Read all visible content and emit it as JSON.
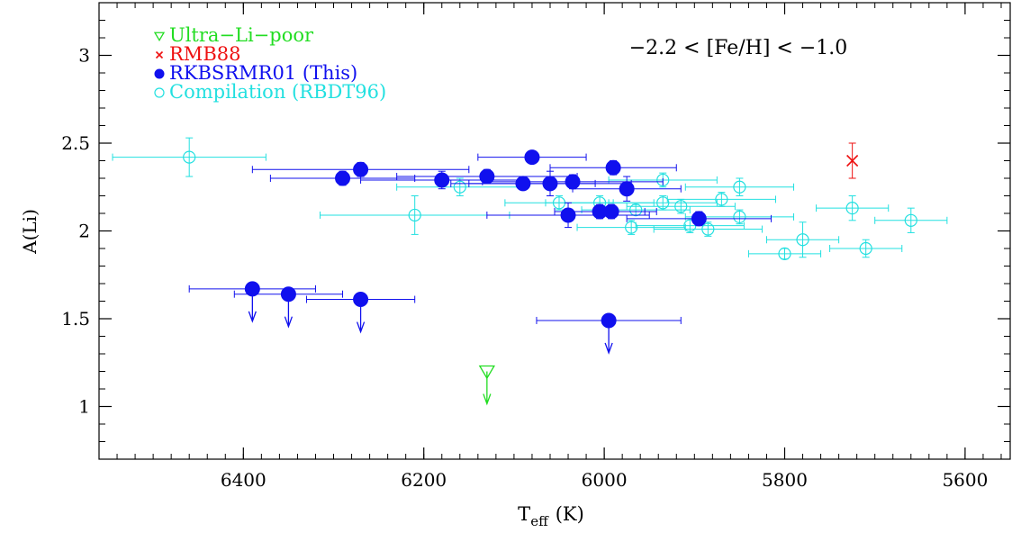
{
  "chart_data": {
    "type": "scatter",
    "title": "",
    "annotation": "−2.2 < [Fe/H] < −1.0",
    "xlabel_main": "T",
    "xlabel_sub": "eff",
    "xlabel_unit": "(K)",
    "ylabel": "A(Li)",
    "xlim": [
      6560,
      5550
    ],
    "ylim": [
      0.7,
      3.3
    ],
    "x_ticks": [
      {
        "value": 6400,
        "label": "6400"
      },
      {
        "value": 6200,
        "label": "6200"
      },
      {
        "value": 6000,
        "label": "6000"
      },
      {
        "value": 5800,
        "label": "5800"
      },
      {
        "value": 5600,
        "label": "5600"
      }
    ],
    "y_ticks": [
      {
        "value": 1,
        "label": "1"
      },
      {
        "value": 1.5,
        "label": "1.5"
      },
      {
        "value": 2,
        "label": "2"
      },
      {
        "value": 2.5,
        "label": "2.5"
      },
      {
        "value": 3,
        "label": "3"
      }
    ],
    "x_minor_step": 20,
    "y_minor_step": 0.1,
    "grid": false,
    "legend_position": "top-left",
    "series": [
      {
        "name": "Ultra−Li−poor",
        "marker": "open-triangle-down",
        "color": "#22dd22",
        "points": [
          {
            "x": 6130,
            "y": 1.2,
            "upper_limit": true
          }
        ]
      },
      {
        "name": "RMB88",
        "marker": "cross",
        "color": "#ee1111",
        "points": [
          {
            "x": 5725,
            "y": 2.4,
            "yerr": 0.1
          }
        ]
      },
      {
        "name": "RKBSRMR01 (This)",
        "marker": "filled-circle",
        "color": "#1010ee",
        "points": [
          {
            "x": 6290,
            "y": 2.3,
            "xerr": 80,
            "yerr": 0.04
          },
          {
            "x": 6270,
            "y": 2.35,
            "xerr": 120,
            "yerr": 0.04
          },
          {
            "x": 6180,
            "y": 2.29,
            "xerr": 90,
            "yerr": 0.05
          },
          {
            "x": 6130,
            "y": 2.31,
            "xerr": 100,
            "yerr": 0.04
          },
          {
            "x": 6090,
            "y": 2.27,
            "xerr": 80,
            "yerr": 0.03
          },
          {
            "x": 6080,
            "y": 2.42,
            "xerr": 60,
            "yerr": 0.03
          },
          {
            "x": 6060,
            "y": 2.27,
            "xerr": 90,
            "yerr": 0.07
          },
          {
            "x": 6040,
            "y": 2.09,
            "xerr": 90,
            "yerr": 0.07
          },
          {
            "x": 6035,
            "y": 2.28,
            "xerr": 100,
            "yerr": 0.04
          },
          {
            "x": 6005,
            "y": 2.11,
            "xerr": 50,
            "yerr": 0.04
          },
          {
            "x": 5992,
            "y": 2.11,
            "xerr": 50,
            "yerr": 0.04
          },
          {
            "x": 5990,
            "y": 2.36,
            "xerr": 70,
            "yerr": 0.04
          },
          {
            "x": 5975,
            "y": 2.24,
            "xerr": 60,
            "yerr": 0.07
          },
          {
            "x": 5895,
            "y": 2.07,
            "xerr": 80,
            "yerr": 0.04
          },
          {
            "x": 6390,
            "y": 1.67,
            "xerr": 70,
            "upper_limit": true
          },
          {
            "x": 6350,
            "y": 1.64,
            "xerr": 60,
            "upper_limit": true
          },
          {
            "x": 6270,
            "y": 1.61,
            "xerr": 60,
            "upper_limit": true
          },
          {
            "x": 5995,
            "y": 1.49,
            "xerr": 80,
            "upper_limit": true
          }
        ]
      },
      {
        "name": "Compilation (RBDT96)",
        "marker": "open-circle-cross",
        "color": "#22e0e0",
        "points": [
          {
            "x": 6460,
            "y": 2.42,
            "xerr": 85,
            "yerr": 0.11
          },
          {
            "x": 6210,
            "y": 2.09,
            "xerr": 105,
            "yerr": 0.11
          },
          {
            "x": 6160,
            "y": 2.25,
            "xerr": 70,
            "yerr": 0.05
          },
          {
            "x": 6050,
            "y": 2.16,
            "xerr": 60,
            "yerr": 0.04
          },
          {
            "x": 6005,
            "y": 2.16,
            "xerr": 60,
            "yerr": 0.04
          },
          {
            "x": 5970,
            "y": 2.02,
            "xerr": 60,
            "yerr": 0.04
          },
          {
            "x": 5965,
            "y": 2.12,
            "xerr": 60,
            "yerr": 0.03
          },
          {
            "x": 5935,
            "y": 2.29,
            "xerr": 60,
            "yerr": 0.04
          },
          {
            "x": 5935,
            "y": 2.16,
            "xerr": 60,
            "yerr": 0.04
          },
          {
            "x": 5915,
            "y": 2.14,
            "xerr": 60,
            "yerr": 0.04
          },
          {
            "x": 5905,
            "y": 2.03,
            "xerr": 60,
            "yerr": 0.04
          },
          {
            "x": 5885,
            "y": 2.01,
            "xerr": 60,
            "yerr": 0.04
          },
          {
            "x": 5870,
            "y": 2.18,
            "xerr": 60,
            "yerr": 0.04
          },
          {
            "x": 5850,
            "y": 2.25,
            "xerr": 60,
            "yerr": 0.05
          },
          {
            "x": 5850,
            "y": 2.08,
            "xerr": 60,
            "yerr": 0.04
          },
          {
            "x": 5800,
            "y": 1.87,
            "xerr": 40,
            "yerr": 0.03
          },
          {
            "x": 5780,
            "y": 1.95,
            "xerr": 40,
            "yerr": 0.1
          },
          {
            "x": 5725,
            "y": 2.13,
            "xerr": 40,
            "yerr": 0.07
          },
          {
            "x": 5710,
            "y": 1.9,
            "xerr": 40,
            "yerr": 0.05
          },
          {
            "x": 5660,
            "y": 2.06,
            "xerr": 40,
            "yerr": 0.07
          }
        ]
      }
    ]
  }
}
